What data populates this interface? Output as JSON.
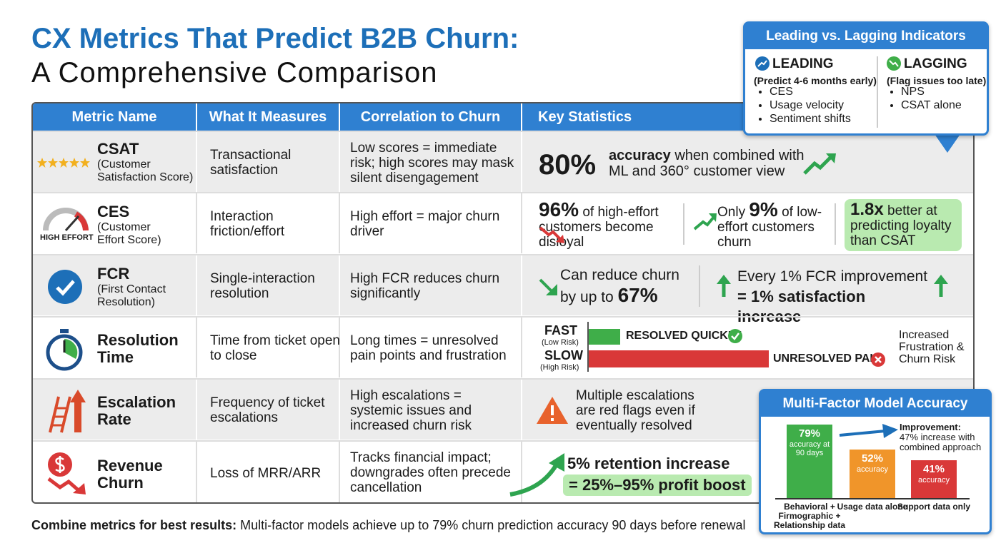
{
  "title": {
    "line1": "CX Metrics That Predict B2B Churn:",
    "line2": "A Comprehensive Comparison"
  },
  "table": {
    "headers": [
      "Metric Name",
      "What It Measures",
      "Correlation to Churn",
      "Key Statistics"
    ],
    "rows": [
      {
        "name": "CSAT",
        "full": "(Customer Satisfaction Score)",
        "measures": "Transactional satisfaction",
        "correlation": "Low scores = immediate risk; high scores may mask silent disengagement",
        "stats": {
          "big": "80%",
          "bold": "accuracy",
          "text": "when combined with ML and 360° customer view"
        }
      },
      {
        "name": "CES",
        "full": "(Customer Effort Score)",
        "icon_label": "HIGH EFFORT",
        "measures": "Interaction friction/effort",
        "correlation": "High effort = major churn driver",
        "stats": [
          {
            "big": "96%",
            "text": "of high-effort customers become disloyal"
          },
          {
            "pre": "Only",
            "big": "9%",
            "text": "of low-effort customers churn"
          },
          {
            "big": "1.8x",
            "text": "better at predicting loyalty than CSAT"
          }
        ]
      },
      {
        "name": "FCR",
        "full": "(First Contact Resolution)",
        "measures": "Single-interaction resolution",
        "correlation": "High FCR reduces churn significantly",
        "stats": [
          {
            "text": "Can reduce churn by up to",
            "big": "67%"
          },
          {
            "text": "Every 1% FCR improvement",
            "text2": "= 1% satisfaction increase"
          }
        ]
      },
      {
        "name": "Resolution Time",
        "measures": "Time from ticket open to close",
        "correlation": "Long times = unresolved pain points and frustration",
        "stats": {
          "fast": "FAST",
          "fast_note": "(Low Risk)",
          "fast_bar": "RESOLVED QUICKLY",
          "slow": "SLOW",
          "slow_note": "(High Risk)",
          "slow_bar": "UNRESOLVED PAIN",
          "note": "Increased Frustration & Churn Risk"
        }
      },
      {
        "name": "Escalation Rate",
        "measures": "Frequency of ticket escalations",
        "correlation": "High escalations = systemic issues and increased churn risk",
        "stats": {
          "text": "Multiple escalations are red flags even if eventually resolved"
        }
      },
      {
        "name": "Revenue Churn",
        "measures": "Loss of MRR/ARR",
        "correlation": "Tracks financial impact; downgrades often precede cancellation",
        "stats": {
          "text": "5% retention increase",
          "text2": "= 25%–95% profit boost"
        }
      }
    ]
  },
  "indicators": {
    "title": "Leading vs. Lagging Indicators",
    "leading": {
      "label": "LEADING",
      "note": "(Predict 4-6 months early)",
      "items": [
        "CES",
        "Usage velocity",
        "Sentiment shifts"
      ]
    },
    "lagging": {
      "label": "LAGGING",
      "note": "(Flag issues too late)",
      "items": [
        "NPS",
        "CSAT alone"
      ]
    }
  },
  "accuracy_chart": {
    "type": "bar",
    "title": "Multi-Factor Model Accuracy",
    "categories": [
      "Behavioral + Firmographic + Relationship data",
      "Usage data alone",
      "Support data only"
    ],
    "values": [
      79,
      52,
      41
    ],
    "value_labels": [
      "79%",
      "52%",
      "41%"
    ],
    "sublabels": [
      "accuracy at 90 days",
      "accuracy",
      "accuracy"
    ],
    "colors": [
      "#3fae49",
      "#f0952a",
      "#d93838"
    ],
    "annotation": {
      "label": "Improvement:",
      "text": "47% increase with combined approach"
    }
  },
  "footer": {
    "bold": "Combine metrics for best results:",
    "text": "Multi-factor models achieve up to 79% churn prediction accuracy 90 days before renewal"
  }
}
